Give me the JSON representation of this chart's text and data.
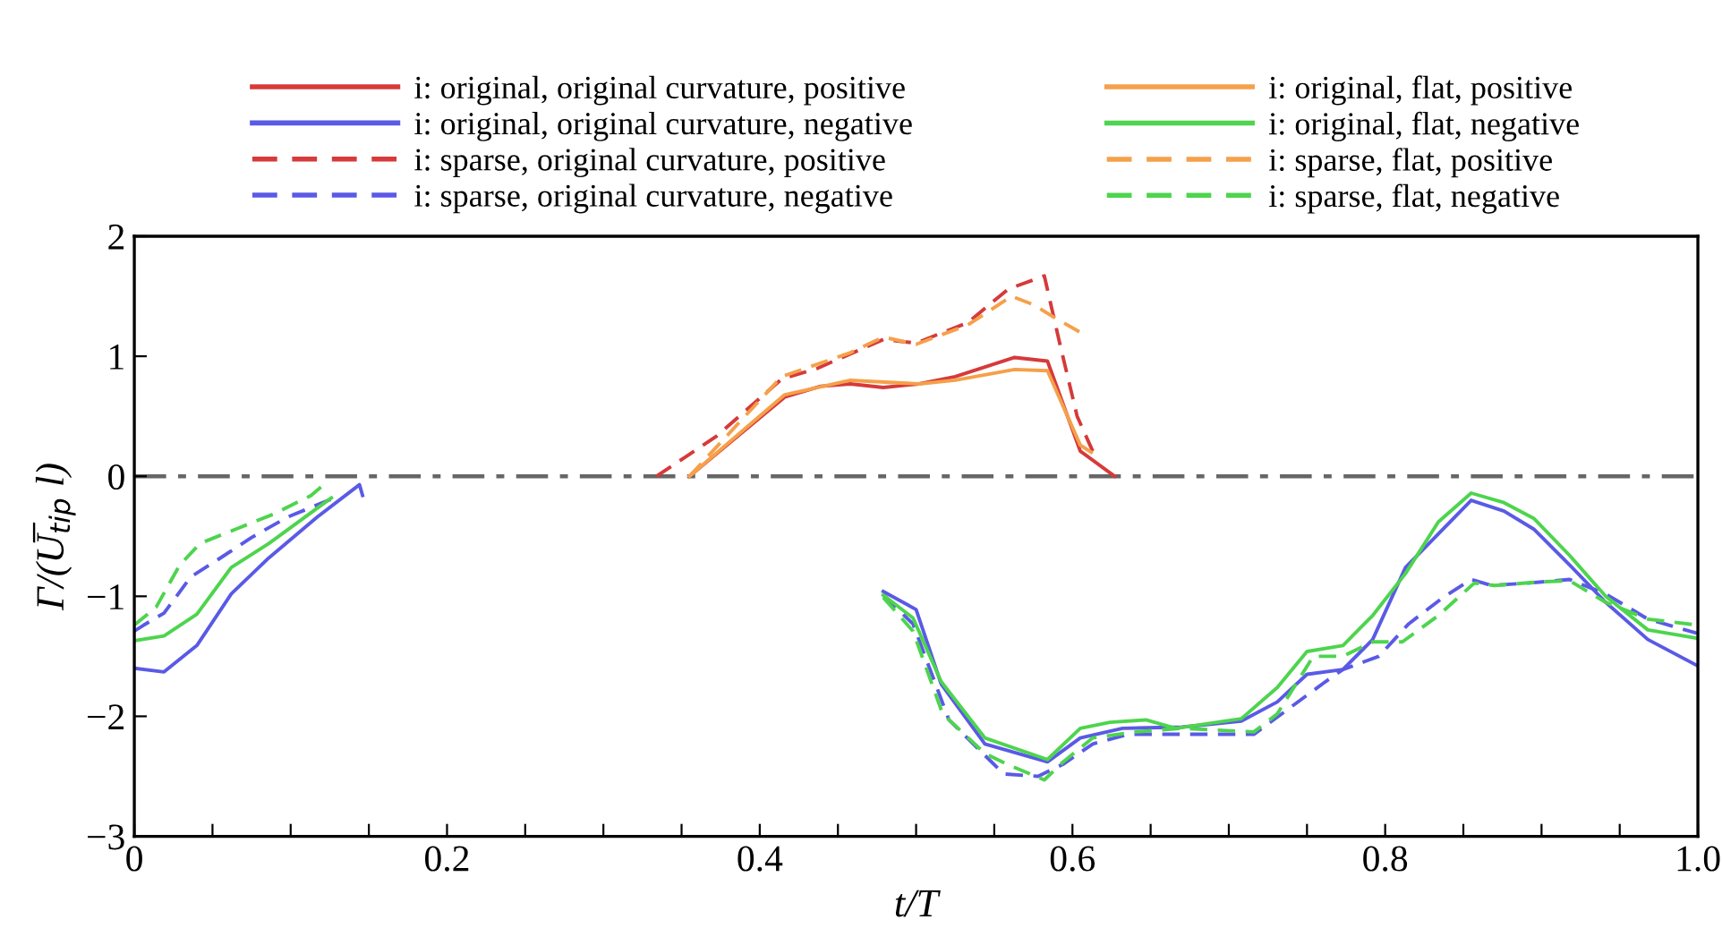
{
  "chart_data": {
    "type": "line",
    "xlabel": "t/T",
    "ylabel": "Γ/(U̅$_{tip}$ l)",
    "xlim": [
      0,
      1
    ],
    "ylim": [
      -3,
      2
    ],
    "xticks": [
      {
        "value": 0,
        "label": "0"
      },
      {
        "value": 0.05,
        "label": null
      },
      {
        "value": 0.1,
        "label": null
      },
      {
        "value": 0.15,
        "label": null
      },
      {
        "value": 0.2,
        "label": "0.2"
      },
      {
        "value": 0.25,
        "label": null
      },
      {
        "value": 0.3,
        "label": null
      },
      {
        "value": 0.35,
        "label": null
      },
      {
        "value": 0.4,
        "label": "0.4"
      },
      {
        "value": 0.45,
        "label": null
      },
      {
        "value": 0.5,
        "label": null
      },
      {
        "value": 0.55,
        "label": null
      },
      {
        "value": 0.6,
        "label": "0.6"
      },
      {
        "value": 0.65,
        "label": null
      },
      {
        "value": 0.7,
        "label": null
      },
      {
        "value": 0.75,
        "label": null
      },
      {
        "value": 0.8,
        "label": "0.8"
      },
      {
        "value": 0.85,
        "label": null
      },
      {
        "value": 0.9,
        "label": null
      },
      {
        "value": 0.95,
        "label": null
      },
      {
        "value": 1.0,
        "label": "1.0"
      }
    ],
    "yticks": [
      -3,
      -2,
      -1,
      0,
      1,
      2
    ],
    "grid": false,
    "legend": "top",
    "marker": "none",
    "ref_lines": [
      {
        "axis": "y",
        "value": 0,
        "color": "#666666",
        "line_style": "dashdot"
      }
    ],
    "series": [
      {
        "name": "i: original, original curvature, positive",
        "color": "#d63a3a",
        "line_style": "solid",
        "x": [
          0.355,
          0.416,
          0.439,
          0.458,
          0.479,
          0.502,
          0.525,
          0.563,
          0.584,
          0.605,
          0.627
        ],
        "values": [
          0,
          0.66,
          0.75,
          0.77,
          0.74,
          0.77,
          0.83,
          0.99,
          0.96,
          0.21,
          0
        ]
      },
      {
        "name": "i: original, original curvature, negative",
        "color": "#5a5ae6",
        "line_style": "solid",
        "x": [
          0,
          0.019,
          0.04,
          0.062,
          0.086,
          0.117,
          0.144,
          0.146,
          null,
          0.479,
          0.5,
          0.516,
          0.544,
          0.584,
          0.605,
          0.632,
          0.67,
          0.708,
          0.731,
          0.75,
          0.773,
          0.792,
          0.813,
          0.834,
          0.855,
          0.876,
          0.895,
          0.918,
          0.941,
          0.968,
          1.0
        ],
        "values": [
          -1.6,
          -1.63,
          -1.41,
          -0.98,
          -0.68,
          -0.34,
          -0.07,
          -0.16,
          null,
          -0.96,
          -1.11,
          -1.73,
          -2.23,
          -2.38,
          -2.18,
          -2.1,
          -2.09,
          -2.04,
          -1.88,
          -1.65,
          -1.61,
          -1.36,
          -0.76,
          -0.48,
          -0.2,
          -0.29,
          -0.44,
          -0.74,
          -1.05,
          -1.36,
          -1.58
        ]
      },
      {
        "name": "i: sparse, original curvature, positive",
        "color": "#d63a3a",
        "line_style": "dashed",
        "x": [
          0.334,
          0.372,
          0.414,
          0.437,
          0.458,
          0.479,
          0.5,
          0.533,
          0.559,
          0.582,
          0.592,
          0.603,
          0.615
        ],
        "values": [
          0,
          0.33,
          0.81,
          0.9,
          1.02,
          1.14,
          1.11,
          1.28,
          1.56,
          1.67,
          1.1,
          0.5,
          0.15
        ]
      },
      {
        "name": "i: sparse, original curvature, negative",
        "color": "#5a5ae6",
        "line_style": "dashed",
        "x": [
          0,
          0.006,
          0.019,
          0.036,
          0.054,
          0.075,
          0.098,
          0.126,
          null,
          0.479,
          0.498,
          0.521,
          0.556,
          0.578,
          0.594,
          0.613,
          0.636,
          0.67,
          0.716,
          0.739,
          0.762,
          0.773,
          0.796,
          0.815,
          0.837,
          0.855,
          0.868,
          0.891,
          0.918,
          0.941,
          0.968,
          1.0
        ],
        "values": [
          -1.29,
          -1.24,
          -1.14,
          -0.84,
          -0.69,
          -0.51,
          -0.34,
          -0.19,
          null,
          -0.99,
          -1.23,
          -2.03,
          -2.48,
          -2.5,
          -2.4,
          -2.23,
          -2.15,
          -2.15,
          -2.15,
          -1.93,
          -1.71,
          -1.61,
          -1.5,
          -1.23,
          -1.01,
          -0.86,
          -0.91,
          -0.89,
          -0.86,
          -0.98,
          -1.19,
          -1.31
        ]
      },
      {
        "name": "i: original, flat, positive",
        "color": "#f5a04a",
        "line_style": "solid",
        "x": [
          0.355,
          0.416,
          0.458,
          0.502,
          0.525,
          0.563,
          0.584,
          0.605,
          0.612
        ],
        "values": [
          0,
          0.68,
          0.8,
          0.77,
          0.8,
          0.89,
          0.88,
          0.26,
          0.2
        ]
      },
      {
        "name": "i: original, flat, negative",
        "color": "#4ed44e",
        "line_style": "solid",
        "x": [
          0,
          0.019,
          0.04,
          0.062,
          0.086,
          0.126,
          null,
          0.479,
          0.498,
          0.516,
          0.544,
          0.584,
          0.605,
          0.624,
          0.647,
          0.666,
          0.708,
          0.731,
          0.75,
          0.773,
          0.792,
          0.813,
          0.834,
          0.855,
          0.876,
          0.895,
          0.918,
          0.941,
          0.968,
          1.0
        ],
        "values": [
          -1.37,
          -1.33,
          -1.15,
          -0.76,
          -0.56,
          -0.18,
          null,
          -0.99,
          -1.18,
          -1.71,
          -2.18,
          -2.36,
          -2.1,
          -2.05,
          -2.03,
          -2.1,
          -2.02,
          -1.76,
          -1.46,
          -1.41,
          -1.16,
          -0.81,
          -0.38,
          -0.14,
          -0.22,
          -0.35,
          -0.66,
          -1.0,
          -1.28,
          -1.35
        ]
      },
      {
        "name": "i: sparse, flat, positive",
        "color": "#f5a04a",
        "line_style": "dashed",
        "x": [
          0.355,
          0.414,
          0.458,
          0.479,
          0.5,
          0.533,
          0.561,
          0.575,
          0.59,
          0.605
        ],
        "values": [
          0,
          0.83,
          1.03,
          1.16,
          1.1,
          1.26,
          1.5,
          1.43,
          1.31,
          1.2
        ]
      },
      {
        "name": "i: sparse, flat, negative",
        "color": "#4ed44e",
        "line_style": "dashed",
        "x": [
          0,
          0.014,
          0.029,
          0.042,
          0.065,
          0.09,
          0.113,
          0.124,
          null,
          0.479,
          0.498,
          0.517,
          0.544,
          0.56,
          0.582,
          0.594,
          0.613,
          0.64,
          0.67,
          0.716,
          0.731,
          0.754,
          0.773,
          0.792,
          0.811,
          0.834,
          0.857,
          0.87,
          0.899,
          0.918,
          0.941,
          0.968,
          1.0
        ],
        "values": [
          -1.24,
          -1.09,
          -0.74,
          -0.56,
          -0.44,
          -0.31,
          -0.16,
          -0.04,
          null,
          -1.01,
          -1.29,
          -1.98,
          -2.31,
          -2.41,
          -2.53,
          -2.38,
          -2.18,
          -2.13,
          -2.1,
          -2.13,
          -1.98,
          -1.5,
          -1.5,
          -1.38,
          -1.38,
          -1.16,
          -0.89,
          -0.91,
          -0.88,
          -0.87,
          -1.05,
          -1.19,
          -1.24
        ]
      }
    ]
  }
}
